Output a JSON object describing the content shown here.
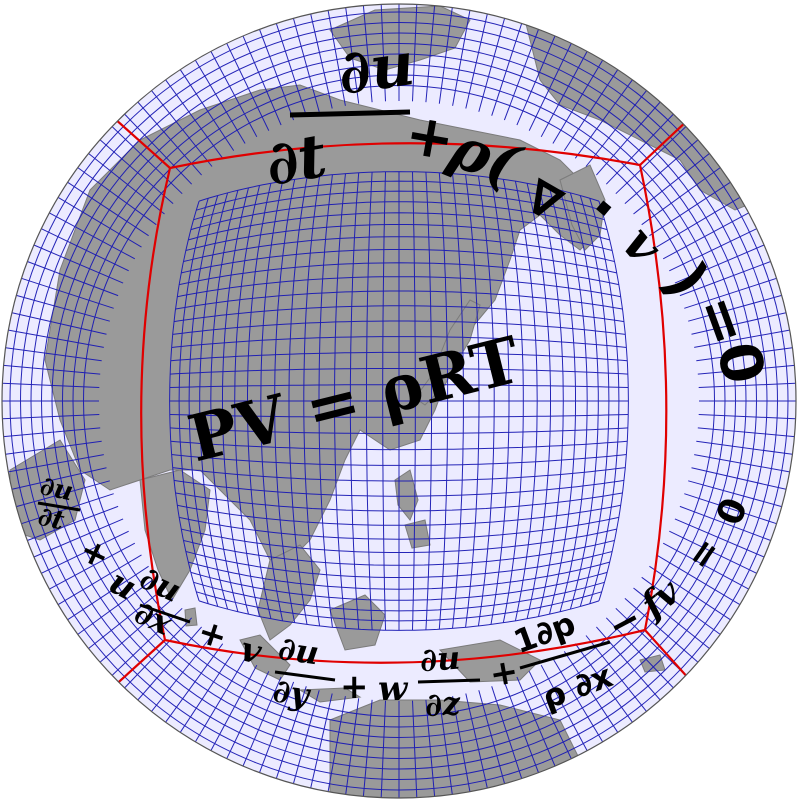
{
  "colors": {
    "ocean": "#ecebff",
    "land": "#9a9a9a",
    "coast": "#7b7b7b",
    "grid": "#1a1ab4",
    "panel_edge": "#e00000",
    "text": "#000000"
  },
  "equations": {
    "continuity": {
      "dt_num": "∂u",
      "dt_den": "∂t",
      "plus": "+",
      "rho": "ρ(",
      "nabla": "∇",
      "dot": "·",
      "v": "v",
      "close": ")",
      "equals": "=",
      "zero": "0"
    },
    "state": {
      "text": "PV = ρRT"
    },
    "momentum": {
      "t1_num": "∂u",
      "t1_den": "∂t",
      "plus1": "+",
      "u": "u",
      "t2_num": "∂u",
      "t2_den": "∂x",
      "plus2": "+",
      "v": "v",
      "t3_num": "∂u",
      "t3_den": "∂y",
      "plus3": "+",
      "w": "w",
      "t4_num": "∂u",
      "t4_den": "∂z",
      "plus4": "+",
      "t5_num": "1∂p",
      "t5_den": "ρ ∂x",
      "minus": "−",
      "fv": "fv",
      "equals": "=",
      "zero": "0"
    }
  }
}
